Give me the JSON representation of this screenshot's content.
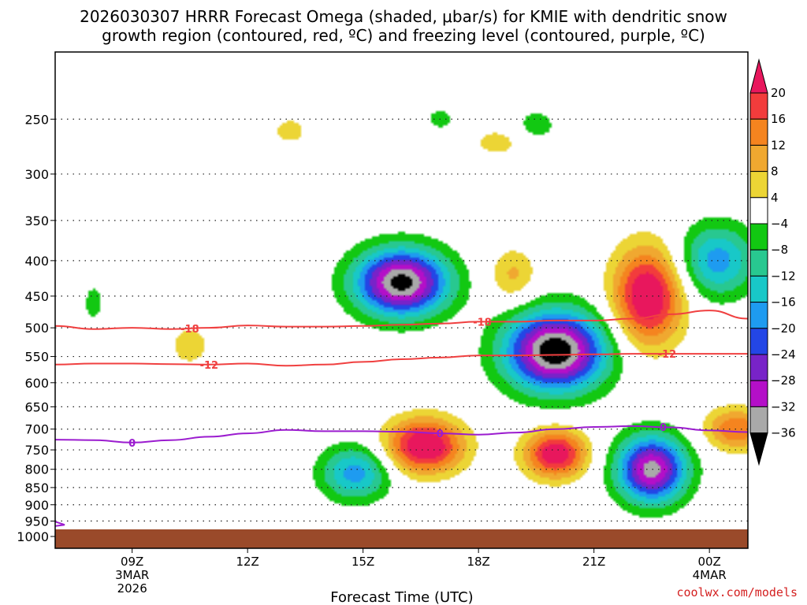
{
  "chart_data": {
    "type": "heatmap",
    "title_line1": "2026030307 HRRR Forecast Omega (shaded, μbar/s) for KMIE with dendritic snow",
    "title_line2": "growth region (contoured, red, ºC) and freezing level (contoured, purple, ºC)",
    "xlabel": "Forecast Time (UTC)",
    "ylabel": "",
    "x_ticks": [
      {
        "hour": 9,
        "label": "09Z",
        "sub1": "3MAR",
        "sub2": "2026"
      },
      {
        "hour": 12,
        "label": "12Z",
        "sub1": "",
        "sub2": ""
      },
      {
        "hour": 15,
        "label": "15Z",
        "sub1": "",
        "sub2": ""
      },
      {
        "hour": 18,
        "label": "18Z",
        "sub1": "",
        "sub2": ""
      },
      {
        "hour": 21,
        "label": "21Z",
        "sub1": "",
        "sub2": ""
      },
      {
        "hour": 24,
        "label": "00Z",
        "sub1": "4MAR",
        "sub2": ""
      }
    ],
    "x_range_hours": [
      7,
      25
    ],
    "y_axis": "pressure (hPa), log scale",
    "y_ticks": [
      250,
      300,
      350,
      400,
      450,
      500,
      550,
      600,
      650,
      700,
      750,
      800,
      850,
      900,
      950,
      1000
    ],
    "y_range_hpa": [
      200,
      1040
    ],
    "colorbar": {
      "labels": [
        "20",
        "16",
        "12",
        "8",
        "4",
        "−4",
        "−8",
        "−12",
        "−16",
        "−20",
        "−24",
        "−28",
        "−32",
        "−36"
      ],
      "bins": [
        {
          "color": "#e8175d",
          "range": ">20"
        },
        {
          "color": "#f23c3c",
          "range": "16 to 20"
        },
        {
          "color": "#f5841f",
          "range": "12 to 16"
        },
        {
          "color": "#f0a830",
          "range": "8 to 12"
        },
        {
          "color": "#ecd535",
          "range": "4 to 8"
        },
        {
          "color": "#ffffff",
          "range": "-4 to 4"
        },
        {
          "color": "#12c812",
          "range": "-8 to -4"
        },
        {
          "color": "#28c890",
          "range": "-12 to -8"
        },
        {
          "color": "#18c8c8",
          "range": "-16 to -12"
        },
        {
          "color": "#1e9bf0",
          "range": "-20 to -16"
        },
        {
          "color": "#2346e6",
          "range": "-24 to -20"
        },
        {
          "color": "#7823c8",
          "range": "-28 to -24"
        },
        {
          "color": "#b40fc8",
          "range": "-32 to -28"
        },
        {
          "color": "#a9a9a9",
          "range": "-36 to -32"
        },
        {
          "color": "#000000",
          "range": "<-36"
        }
      ]
    },
    "omega_cells": [
      {
        "name": "upper-ascent-near-16Z",
        "t": 16.0,
        "p": 430,
        "dt": 1.2,
        "logdp": 0.11,
        "value": -38
      },
      {
        "name": "mid-ascent-near-20Z",
        "t": 20.0,
        "p": 540,
        "dt": 1.3,
        "logdp": 0.13,
        "value": -40
      },
      {
        "name": "low-ascent-near-22.5Z",
        "t": 22.5,
        "p": 800,
        "dt": 0.9,
        "logdp": 0.11,
        "value": -34
      },
      {
        "name": "low-ascent-near-14.8Z",
        "t": 14.8,
        "p": 810,
        "dt": 0.9,
        "logdp": 0.09,
        "value": -18
      },
      {
        "name": "ascent-near-24Z",
        "t": 24.2,
        "p": 400,
        "dt": 1.0,
        "logdp": 0.12,
        "value": -18
      },
      {
        "name": "descent-near-16.5Z",
        "t": 16.6,
        "p": 740,
        "dt": 1.0,
        "logdp": 0.09,
        "value": 26
      },
      {
        "name": "descent-near-20Z",
        "t": 20.0,
        "p": 760,
        "dt": 0.8,
        "logdp": 0.08,
        "value": 24
      },
      {
        "name": "descent-near-22.5Z",
        "t": 22.4,
        "p": 450,
        "dt": 0.9,
        "logdp": 0.16,
        "value": 26
      },
      {
        "name": "descent-near-24.5Z",
        "t": 24.7,
        "p": 700,
        "dt": 0.8,
        "logdp": 0.07,
        "value": 16
      },
      {
        "name": "descent-near-18.8Z",
        "t": 18.9,
        "p": 420,
        "dt": 0.6,
        "logdp": 0.09,
        "value": 9
      },
      {
        "name": "weak-descent-13Z",
        "t": 13.1,
        "p": 260,
        "dt": 0.5,
        "logdp": 0.05,
        "value": 6
      },
      {
        "name": "weak-descent-10.5Z",
        "t": 10.5,
        "p": 530,
        "dt": 0.6,
        "logdp": 0.08,
        "value": 6
      },
      {
        "name": "weak-descent-18.5Z",
        "t": 18.5,
        "p": 270,
        "dt": 0.7,
        "logdp": 0.05,
        "value": 6
      },
      {
        "name": "weak-ascent-8Z",
        "t": 8.0,
        "p": 460,
        "dt": 0.3,
        "logdp": 0.07,
        "value": -6
      },
      {
        "name": "weak-ascent-17Z",
        "t": 17.0,
        "p": 250,
        "dt": 0.4,
        "logdp": 0.04,
        "value": -6
      },
      {
        "name": "weak-ascent-19.5Z",
        "t": 19.5,
        "p": 255,
        "dt": 0.6,
        "logdp": 0.06,
        "value": -6
      }
    ],
    "isotherms": [
      {
        "name": "dendritic-minus-18",
        "label": "-18",
        "color": "#f04040",
        "t": [
          7,
          8,
          9,
          10,
          11,
          12,
          13,
          14,
          15,
          16,
          17,
          18,
          19,
          20,
          21,
          22,
          23,
          24,
          25
        ],
        "p": [
          497,
          502,
          500,
          502,
          500,
          496,
          498,
          498,
          497,
          495,
          493,
          490,
          490,
          488,
          488,
          485,
          478,
          472,
          485
        ],
        "label_hours": [
          10.5,
          18.1
        ]
      },
      {
        "name": "dendritic-minus-12",
        "label": "-12",
        "color": "#f04040",
        "t": [
          7,
          8,
          9,
          10,
          11,
          12,
          13,
          14,
          15,
          16,
          17,
          18,
          19,
          20,
          21,
          22,
          23,
          24,
          25
        ],
        "p": [
          565,
          563,
          563,
          564,
          565,
          563,
          567,
          565,
          560,
          555,
          552,
          548,
          548,
          547,
          546,
          545,
          545,
          545,
          545
        ],
        "label_hours": [
          11.0,
          22.9
        ]
      },
      {
        "name": "freezing-level-0",
        "label": "0",
        "color": "#9b1ccf",
        "t": [
          7,
          8,
          9,
          10,
          11,
          12,
          13,
          14,
          15,
          16,
          17,
          18,
          19,
          20,
          21,
          22,
          23,
          24,
          25
        ],
        "p": [
          725,
          726,
          732,
          726,
          718,
          710,
          702,
          705,
          705,
          706,
          710,
          713,
          708,
          700,
          695,
          693,
          696,
          703,
          707
        ],
        "label_hours": [
          9.0,
          17.0,
          22.8
        ]
      }
    ],
    "ground_level_hpa": 990,
    "credit": "coolwx.com/models"
  }
}
